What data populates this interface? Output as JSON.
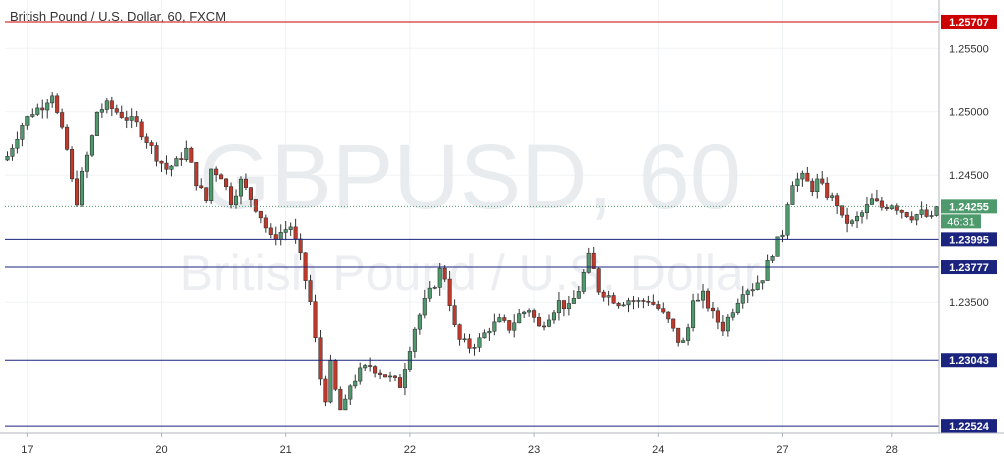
{
  "title": "British Pound / U.S. Dollar, 60, FXCM",
  "watermark": {
    "symbol": "GBPUSD, 60",
    "description": "British Pound / U.S. Dollar"
  },
  "countdown": "46:31",
  "colors": {
    "up": "#4e9a6d",
    "down": "#c0392b",
    "wick": "#333333",
    "support": "#1a237e",
    "resistance": "#cc0000",
    "current": "#4e9a6d",
    "grid": "#f0f3f6"
  },
  "chart_data": {
    "type": "candlestick",
    "symbol": "GBPUSD",
    "timeframe": "60",
    "source": "FXCM",
    "x_tick_labels": [
      "17",
      "20",
      "21",
      "22",
      "23",
      "24",
      "27",
      "28"
    ],
    "y_tick_labels": [
      "1.25500",
      "1.25000",
      "1.24500",
      "1.23500"
    ],
    "ylim": [
      1.2247,
      1.2588
    ],
    "current_price": {
      "label": "1.24255",
      "value": 1.24255
    },
    "horizontal_levels": [
      {
        "label": "1.25707",
        "value": 1.25707,
        "kind": "resistance"
      },
      {
        "label": "1.23995",
        "value": 1.23995,
        "kind": "support"
      },
      {
        "label": "1.23777",
        "value": 1.23777,
        "kind": "support"
      },
      {
        "label": "1.23043",
        "value": 1.23043,
        "kind": "support"
      },
      {
        "label": "1.22524",
        "value": 1.22524,
        "kind": "support"
      }
    ],
    "price_path": [
      [
        0,
        1.2465
      ],
      [
        3,
        1.249
      ],
      [
        5,
        1.25
      ],
      [
        7,
        1.2505
      ],
      [
        9,
        1.2515
      ],
      [
        10,
        1.2498
      ],
      [
        12,
        1.247
      ],
      [
        13,
        1.2445
      ],
      [
        14,
        1.243
      ],
      [
        15,
        1.245
      ],
      [
        17,
        1.248
      ],
      [
        18,
        1.25
      ],
      [
        20,
        1.2505
      ],
      [
        22,
        1.25
      ],
      [
        24,
        1.2495
      ],
      [
        26,
        1.249
      ],
      [
        28,
        1.2478
      ],
      [
        30,
        1.2465
      ],
      [
        32,
        1.2455
      ],
      [
        34,
        1.246
      ],
      [
        36,
        1.247
      ],
      [
        38,
        1.2445
      ],
      [
        40,
        1.243
      ],
      [
        41,
        1.2455
      ],
      [
        43,
        1.245
      ],
      [
        45,
        1.243
      ],
      [
        47,
        1.2445
      ],
      [
        49,
        1.2432
      ],
      [
        51,
        1.2418
      ],
      [
        53,
        1.24
      ],
      [
        55,
        1.2405
      ],
      [
        57,
        1.241
      ],
      [
        59,
        1.2385
      ],
      [
        61,
        1.235
      ],
      [
        62,
        1.232
      ],
      [
        63,
        1.229
      ],
      [
        64,
        1.2275
      ],
      [
        65,
        1.23
      ],
      [
        66,
        1.228
      ],
      [
        67,
        1.2265
      ],
      [
        68,
        1.227
      ],
      [
        69,
        1.2285
      ],
      [
        71,
        1.2295
      ],
      [
        73,
        1.23
      ],
      [
        75,
        1.2295
      ],
      [
        77,
        1.229
      ],
      [
        79,
        1.2285
      ],
      [
        80,
        1.23
      ],
      [
        82,
        1.233
      ],
      [
        84,
        1.235
      ],
      [
        86,
        1.2365
      ],
      [
        87,
        1.2375
      ],
      [
        88,
        1.237
      ],
      [
        89,
        1.235
      ],
      [
        90,
        1.233
      ],
      [
        91,
        1.232
      ],
      [
        93,
        1.2315
      ],
      [
        95,
        1.232
      ],
      [
        97,
        1.233
      ],
      [
        99,
        1.2335
      ],
      [
        101,
        1.233
      ],
      [
        103,
        1.234
      ],
      [
        105,
        1.2345
      ],
      [
        107,
        1.233
      ],
      [
        109,
        1.234
      ],
      [
        111,
        1.235
      ],
      [
        113,
        1.2345
      ],
      [
        115,
        1.236
      ],
      [
        117,
        1.2385
      ],
      [
        118,
        1.2375
      ],
      [
        119,
        1.236
      ],
      [
        121,
        1.2355
      ],
      [
        123,
        1.235
      ],
      [
        125,
        1.2352
      ],
      [
        127,
        1.235
      ],
      [
        129,
        1.2352
      ],
      [
        131,
        1.2345
      ],
      [
        133,
        1.2335
      ],
      [
        135,
        1.232
      ],
      [
        136,
        1.2318
      ],
      [
        137,
        1.233
      ],
      [
        138,
        1.2355
      ],
      [
        139,
        1.235
      ],
      [
        140,
        1.2355
      ],
      [
        142,
        1.234
      ],
      [
        144,
        1.233
      ],
      [
        146,
        1.2345
      ],
      [
        148,
        1.236
      ],
      [
        150,
        1.2362
      ],
      [
        152,
        1.237
      ],
      [
        154,
        1.239
      ],
      [
        156,
        1.2405
      ],
      [
        157,
        1.243
      ],
      [
        158,
        1.2445
      ],
      [
        160,
        1.2448
      ],
      [
        162,
        1.244
      ],
      [
        163,
        1.2445
      ],
      [
        165,
        1.2435
      ],
      [
        167,
        1.2428
      ],
      [
        168,
        1.2415
      ],
      [
        170,
        1.2412
      ],
      [
        172,
        1.242
      ],
      [
        174,
        1.243
      ],
      [
        176,
        1.2425
      ],
      [
        178,
        1.2428
      ],
      [
        180,
        1.2422
      ],
      [
        182,
        1.2418
      ],
      [
        184,
        1.242
      ],
      [
        186,
        1.2415
      ],
      [
        187,
        1.24255
      ]
    ],
    "candle_count": 188,
    "x_tick_positions": [
      4,
      31,
      56,
      81,
      106,
      131,
      156,
      178
    ]
  }
}
